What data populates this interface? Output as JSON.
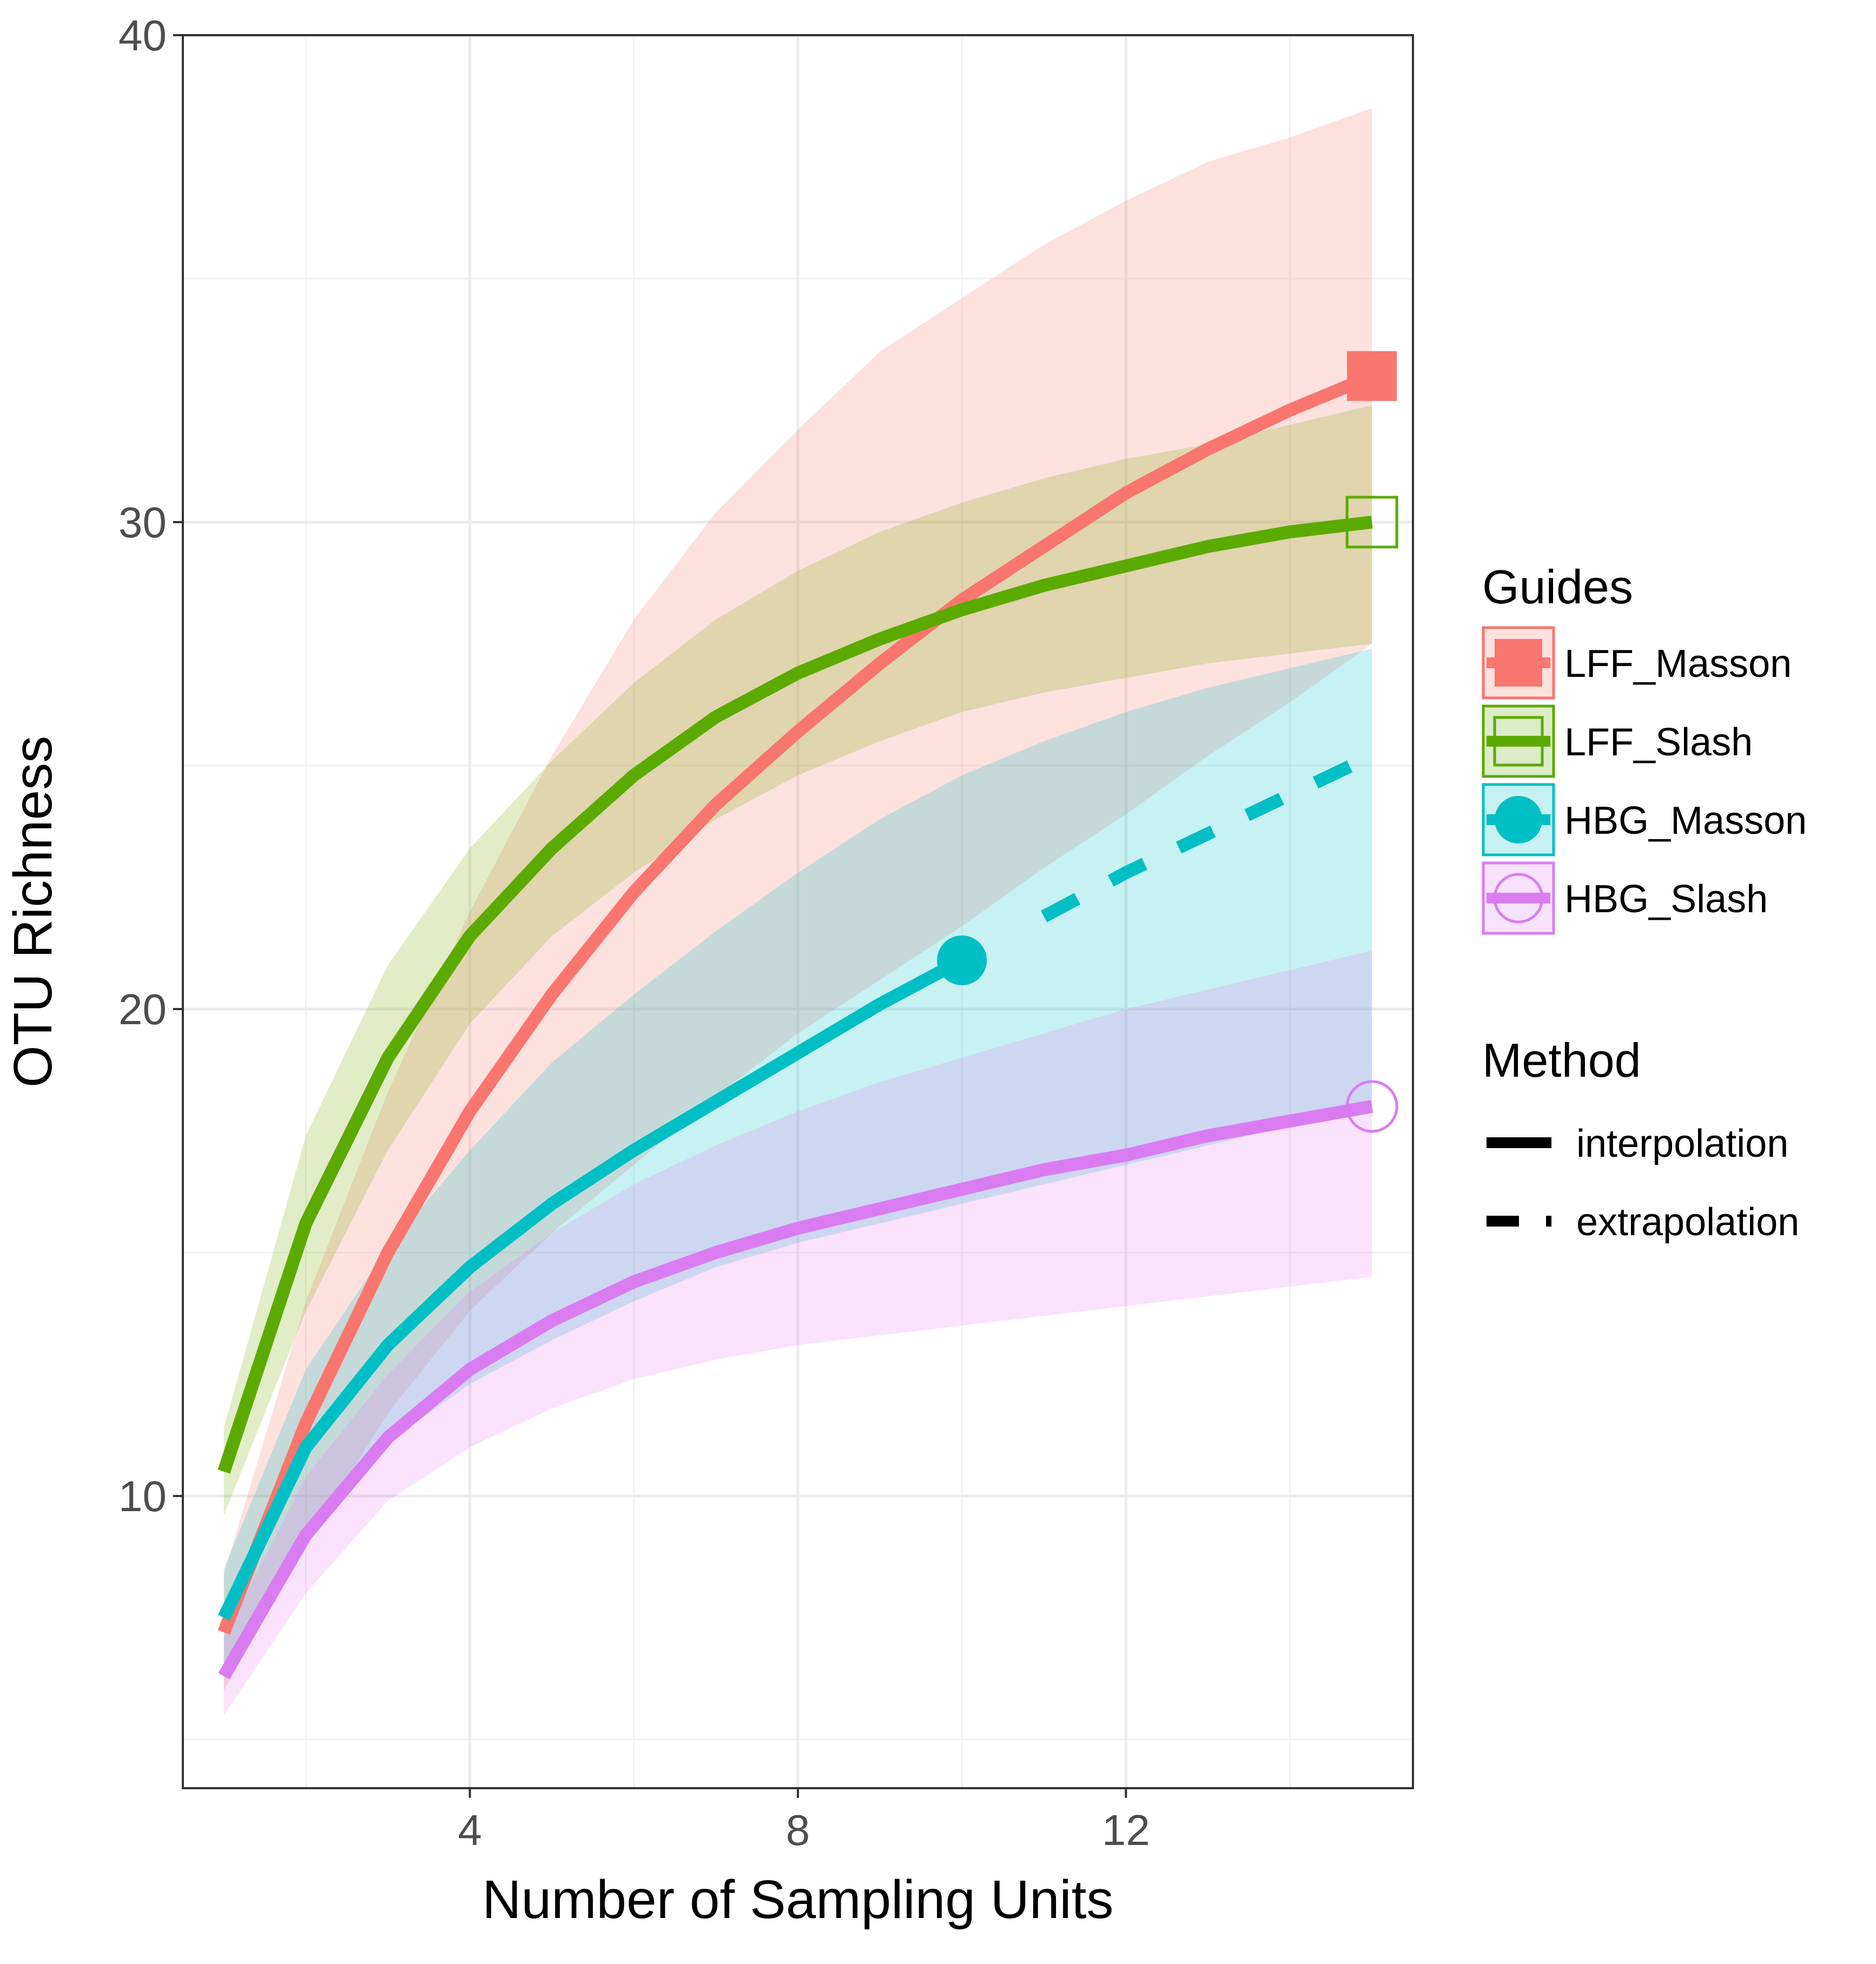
{
  "chart_data": {
    "type": "line",
    "xlabel": "Number of Sampling Units",
    "ylabel": "OTU Richness",
    "xlim": [
      0.5,
      15.5
    ],
    "ylim": [
      4,
      40
    ],
    "x_ticks": [
      4,
      8,
      12
    ],
    "y_ticks": [
      10,
      20,
      30,
      40
    ],
    "grid": true,
    "legend_placement": "right",
    "legends": [
      {
        "title": "Guides",
        "entries": [
          {
            "label": "LFF_Masson",
            "color": "#F8766D",
            "shape": "square-filled"
          },
          {
            "label": "LFF_Slash",
            "color": "#5BAA00",
            "shape": "square-open"
          },
          {
            "label": "HBG_Masson",
            "color": "#00BFC4",
            "shape": "circle-filled"
          },
          {
            "label": "HBG_Slash",
            "color": "#D97CF2",
            "shape": "circle-open"
          }
        ]
      },
      {
        "title": "Method",
        "entries": [
          {
            "label": "interpolation",
            "linetype": "solid"
          },
          {
            "label": "extrapolation",
            "linetype": "dashed"
          }
        ]
      }
    ],
    "series": [
      {
        "name": "LFF_Masson",
        "color": "#F8766D",
        "fill": "#F8766D",
        "marker": "square-filled",
        "observed": [
          15,
          33
        ],
        "x": [
          1,
          2,
          3,
          4,
          5,
          6,
          7,
          8,
          9,
          10,
          11,
          12,
          13,
          14,
          15
        ],
        "y": [
          7.2,
          11.5,
          15.0,
          17.9,
          20.3,
          22.4,
          24.2,
          25.7,
          27.1,
          28.4,
          29.5,
          30.6,
          31.5,
          32.3,
          33.0
        ],
        "lower": [
          6.0,
          9.0,
          11.7,
          13.8,
          15.4,
          16.8,
          18.2,
          19.5,
          20.6,
          21.7,
          22.9,
          24.0,
          25.2,
          26.3,
          27.5
        ],
        "upper": [
          8.4,
          14.0,
          18.3,
          22.0,
          25.2,
          28.0,
          30.2,
          31.9,
          33.5,
          34.6,
          35.7,
          36.6,
          37.4,
          37.9,
          38.5
        ],
        "solid_until": 15
      },
      {
        "name": "LFF_Slash",
        "color": "#5BAA00",
        "fill": "#7CAE00",
        "marker": "square-open",
        "observed": [
          15,
          30
        ],
        "x": [
          1,
          2,
          3,
          4,
          5,
          6,
          7,
          8,
          9,
          10,
          11,
          12,
          13,
          14,
          15
        ],
        "y": [
          10.5,
          15.6,
          19.0,
          21.5,
          23.3,
          24.8,
          26.0,
          26.9,
          27.6,
          28.2,
          28.7,
          29.1,
          29.5,
          29.8,
          30.0
        ],
        "lower": [
          9.6,
          13.8,
          17.1,
          19.7,
          21.5,
          22.8,
          23.9,
          24.8,
          25.5,
          26.1,
          26.5,
          26.8,
          27.1,
          27.3,
          27.5
        ],
        "upper": [
          11.4,
          17.4,
          20.9,
          23.3,
          25.1,
          26.7,
          28.0,
          29.0,
          29.8,
          30.4,
          30.9,
          31.3,
          31.6,
          32.0,
          32.4
        ],
        "solid_until": 15
      },
      {
        "name": "HBG_Masson",
        "color": "#00BFC4",
        "fill": "#00BFC4",
        "marker": "circle-filled",
        "observed": [
          10,
          21
        ],
        "x": [
          1,
          2,
          3,
          4,
          5,
          6,
          7,
          8,
          9,
          10,
          11,
          12,
          13,
          14,
          15
        ],
        "y": [
          7.5,
          11.0,
          13.1,
          14.7,
          16.0,
          17.1,
          18.1,
          19.1,
          20.1,
          21.0,
          21.9,
          22.8,
          23.6,
          24.4,
          25.2
        ],
        "lower": [
          6.5,
          9.4,
          11.1,
          12.3,
          13.2,
          14.0,
          14.7,
          15.2,
          15.6,
          16.0,
          16.4,
          16.8,
          17.2,
          17.6,
          18.0
        ],
        "upper": [
          8.5,
          12.6,
          15.1,
          17.1,
          18.9,
          20.3,
          21.6,
          22.8,
          23.9,
          24.8,
          25.5,
          26.1,
          26.6,
          27.0,
          27.4
        ],
        "solid_until": 10
      },
      {
        "name": "HBG_Slash",
        "color": "#D97CF2",
        "fill": "#E77CF2",
        "marker": "circle-open",
        "observed": [
          15,
          18
        ],
        "x": [
          1,
          2,
          3,
          4,
          5,
          6,
          7,
          8,
          9,
          10,
          11,
          12,
          13,
          14,
          15
        ],
        "y": [
          6.3,
          9.2,
          11.2,
          12.6,
          13.6,
          14.4,
          15.0,
          15.5,
          15.9,
          16.3,
          16.7,
          17.0,
          17.4,
          17.7,
          18.0
        ],
        "lower": [
          5.5,
          8.0,
          9.9,
          11.0,
          11.8,
          12.4,
          12.8,
          13.1,
          13.3,
          13.5,
          13.7,
          13.9,
          14.1,
          14.3,
          14.5
        ],
        "upper": [
          7.1,
          10.4,
          12.5,
          14.2,
          15.4,
          16.4,
          17.2,
          17.9,
          18.5,
          19.0,
          19.5,
          20.0,
          20.4,
          20.8,
          21.2
        ],
        "solid_until": 15
      }
    ]
  }
}
